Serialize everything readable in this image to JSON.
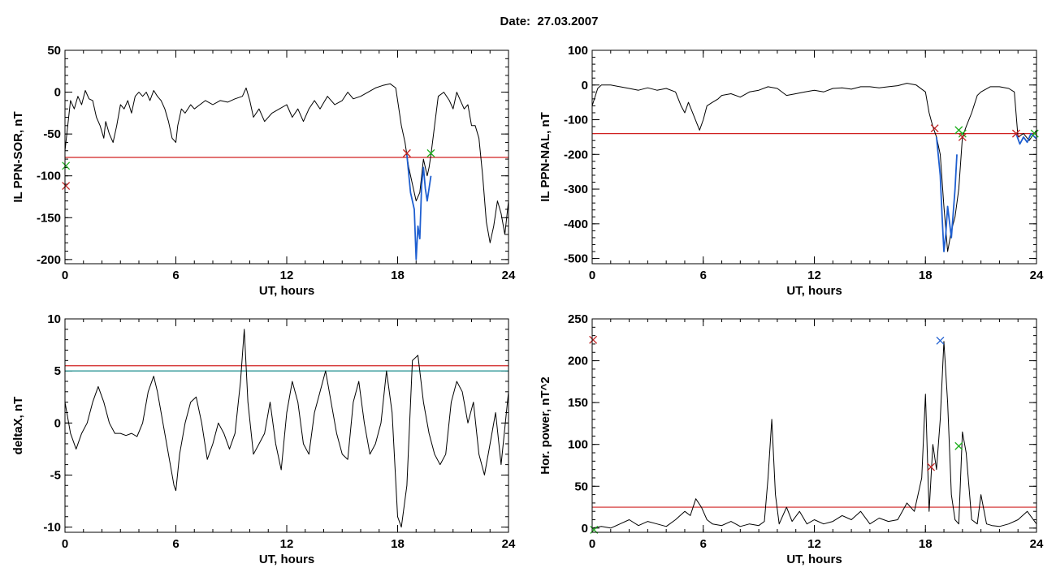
{
  "page": {
    "title": "Date:  27.03.2007"
  },
  "chart_data": [
    {
      "id": "sor",
      "type": "line",
      "xlabel": "UT, hours",
      "ylabel": "IL PPN-SOR, nT",
      "xlim": [
        0,
        24
      ],
      "ylim": [
        -205,
        50
      ],
      "xticks": [
        0,
        6,
        12,
        18,
        24
      ],
      "yticks": [
        50,
        0,
        -50,
        -100,
        -150,
        -200
      ],
      "series": [
        {
          "color": "#000000",
          "x": [
            0,
            0.15,
            0.3,
            0.5,
            0.7,
            0.9,
            1.1,
            1.3,
            1.5,
            1.7,
            1.9,
            2.1,
            2.2,
            2.4,
            2.6,
            2.8,
            3.0,
            3.2,
            3.4,
            3.6,
            3.8,
            4.0,
            4.2,
            4.4,
            4.6,
            4.8,
            5.0,
            5.2,
            5.4,
            5.6,
            5.8,
            6.0,
            6.1,
            6.2,
            6.3,
            6.5,
            6.8,
            7.0,
            7.3,
            7.6,
            8.0,
            8.4,
            8.8,
            9.2,
            9.6,
            9.8,
            10.0,
            10.2,
            10.5,
            10.8,
            11.2,
            11.6,
            12.0,
            12.3,
            12.6,
            12.9,
            13.2,
            13.5,
            13.8,
            14.2,
            14.6,
            15.0,
            15.3,
            15.6,
            16.0,
            16.4,
            16.8,
            17.2,
            17.6,
            17.9,
            18.2,
            18.4,
            18.5,
            18.6,
            18.8,
            19.0,
            19.2,
            19.4,
            19.6,
            19.7,
            19.8,
            20.0,
            20.2,
            20.5,
            20.8,
            21.0,
            21.2,
            21.4,
            21.6,
            21.8,
            22.0,
            22.2,
            22.4,
            22.6,
            22.8,
            23.0,
            23.2,
            23.4,
            23.6,
            23.8,
            24.0
          ],
          "y": [
            -70,
            -40,
            -10,
            -20,
            -5,
            -15,
            2,
            -8,
            -10,
            -30,
            -40,
            -55,
            -35,
            -50,
            -60,
            -40,
            -15,
            -20,
            -10,
            -25,
            -5,
            0,
            -5,
            0,
            -10,
            2,
            -5,
            -10,
            -20,
            -35,
            -55,
            -60,
            -40,
            -30,
            -20,
            -25,
            -15,
            -20,
            -15,
            -10,
            -15,
            -10,
            -12,
            -8,
            -5,
            5,
            -10,
            -30,
            -20,
            -35,
            -25,
            -20,
            -15,
            -30,
            -20,
            -35,
            -20,
            -10,
            -20,
            -5,
            -15,
            -10,
            0,
            -8,
            -5,
            0,
            5,
            8,
            10,
            5,
            -40,
            -60,
            -75,
            -90,
            -110,
            -130,
            -120,
            -80,
            -100,
            -90,
            -75,
            -40,
            -5,
            0,
            -10,
            -20,
            0,
            -10,
            -20,
            -15,
            -40,
            -40,
            -55,
            -100,
            -155,
            -180,
            -160,
            -130,
            -145,
            -170,
            -130
          ]
        },
        {
          "color": "#1f5fd0",
          "x": [
            18.5,
            18.7,
            18.9,
            19.0,
            19.1,
            19.2,
            19.3,
            19.4,
            19.5,
            19.6,
            19.8
          ],
          "y": [
            -75,
            -120,
            -140,
            -200,
            -160,
            -175,
            -110,
            -90,
            -115,
            -130,
            -100
          ]
        }
      ],
      "hlines": [
        {
          "value": -78,
          "color": "#d02020"
        }
      ],
      "markers": [
        {
          "x": 18.5,
          "y": -73,
          "color": "#c02020"
        },
        {
          "x": 19.8,
          "y": -73,
          "color": "#20b020"
        },
        {
          "x": 0.05,
          "y": -112,
          "color": "#c02020"
        },
        {
          "x": 0.05,
          "y": -88,
          "color": "#20b020"
        }
      ]
    },
    {
      "id": "nal",
      "type": "line",
      "xlabel": "UT, hours",
      "ylabel": "IL PPN-NAL, nT",
      "xlim": [
        0,
        24
      ],
      "ylim": [
        -515,
        100
      ],
      "xticks": [
        0,
        6,
        12,
        18,
        24
      ],
      "yticks": [
        100,
        0,
        -100,
        -200,
        -300,
        -400,
        -500
      ],
      "series": [
        {
          "color": "#000000",
          "x": [
            0,
            0.3,
            0.5,
            1,
            1.5,
            2,
            2.5,
            3,
            3.5,
            4,
            4.5,
            4.8,
            5.0,
            5.2,
            5.5,
            5.8,
            6.0,
            6.2,
            6.5,
            6.8,
            7.0,
            7.5,
            8.0,
            8.5,
            9.0,
            9.5,
            10.0,
            10.5,
            11,
            11.5,
            12,
            12.5,
            13,
            13.5,
            14,
            14.5,
            15,
            15.5,
            16,
            16.5,
            17,
            17.5,
            18.0,
            18.2,
            18.4,
            18.6,
            18.8,
            19.0,
            19.2,
            19.4,
            19.6,
            19.8,
            20.0,
            20.2,
            20.5,
            20.8,
            21.0,
            21.5,
            22.0,
            22.5,
            22.8,
            23.0,
            23.3,
            23.6,
            24.0
          ],
          "y": [
            -60,
            -10,
            0,
            0,
            -5,
            -10,
            -15,
            -8,
            -15,
            -10,
            -20,
            -60,
            -80,
            -50,
            -90,
            -130,
            -100,
            -60,
            -50,
            -40,
            -30,
            -25,
            -35,
            -20,
            -15,
            -5,
            -10,
            -30,
            -25,
            -20,
            -15,
            -20,
            -10,
            -8,
            -12,
            -5,
            -5,
            -8,
            -5,
            -2,
            5,
            0,
            -20,
            -80,
            -120,
            -150,
            -200,
            -350,
            -480,
            -420,
            -380,
            -300,
            -150,
            -120,
            -80,
            -30,
            -20,
            -5,
            -5,
            -10,
            -20,
            -150,
            -140,
            -160,
            -130
          ]
        },
        {
          "color": "#1f5fd0",
          "x": [
            18.6,
            18.8,
            18.9,
            19.0,
            19.1,
            19.2,
            19.4,
            19.6,
            19.7
          ],
          "y": [
            -150,
            -260,
            -380,
            -480,
            -430,
            -350,
            -440,
            -300,
            -200
          ]
        },
        {
          "color": "#1f5fd0",
          "x": [
            22.9,
            23.1,
            23.3,
            23.5,
            23.7,
            24.0
          ],
          "y": [
            -140,
            -170,
            -150,
            -165,
            -140,
            -155
          ]
        }
      ],
      "hlines": [
        {
          "value": -140,
          "color": "#d02020"
        }
      ],
      "markers": [
        {
          "x": 18.5,
          "y": -125,
          "color": "#c02020"
        },
        {
          "x": 19.8,
          "y": -130,
          "color": "#20b020"
        },
        {
          "x": 20.0,
          "y": -140,
          "color": "#20b020"
        },
        {
          "x": 20.0,
          "y": -150,
          "color": "#c02020"
        },
        {
          "x": 22.9,
          "y": -140,
          "color": "#c02020"
        },
        {
          "x": 23.9,
          "y": -140,
          "color": "#20b020"
        }
      ]
    },
    {
      "id": "deltax",
      "type": "line",
      "xlabel": "UT, hours",
      "ylabel": "deltaX, nT",
      "xlim": [
        0,
        24
      ],
      "ylim": [
        -10.5,
        10
      ],
      "xticks": [
        0,
        6,
        12,
        18,
        24
      ],
      "yticks": [
        10,
        5,
        0,
        -5,
        -10
      ],
      "series": [
        {
          "color": "#000000",
          "x": [
            0,
            0.3,
            0.6,
            0.9,
            1.2,
            1.5,
            1.8,
            2.1,
            2.4,
            2.7,
            3.0,
            3.3,
            3.6,
            3.9,
            4.2,
            4.5,
            4.8,
            5.0,
            5.3,
            5.6,
            5.9,
            6.0,
            6.2,
            6.5,
            6.8,
            7.1,
            7.4,
            7.7,
            8.0,
            8.3,
            8.6,
            8.9,
            9.2,
            9.5,
            9.7,
            9.9,
            10.2,
            10.5,
            10.8,
            11.1,
            11.4,
            11.7,
            12.0,
            12.3,
            12.6,
            12.9,
            13.2,
            13.5,
            13.8,
            14.1,
            14.4,
            14.7,
            15.0,
            15.3,
            15.6,
            15.9,
            16.2,
            16.5,
            16.8,
            17.1,
            17.4,
            17.7,
            18.0,
            18.2,
            18.5,
            18.8,
            19.1,
            19.4,
            19.7,
            20.0,
            20.3,
            20.6,
            20.9,
            21.2,
            21.5,
            21.8,
            22.1,
            22.4,
            22.7,
            23.0,
            23.3,
            23.6,
            24.0
          ],
          "y": [
            2,
            -1,
            -2.5,
            -1,
            0,
            2,
            3.5,
            2,
            0,
            -1,
            -1,
            -1.2,
            -1,
            -1.3,
            0,
            3,
            4.5,
            3,
            0,
            -3,
            -6,
            -6.5,
            -3,
            0,
            2,
            2.5,
            0,
            -3.5,
            -2,
            0,
            -1,
            -2.5,
            -1,
            4,
            9,
            2,
            -3,
            -2,
            -1,
            2,
            -2,
            -4.5,
            1,
            4,
            2,
            -2,
            -3,
            1,
            3,
            5,
            2,
            -1,
            -3,
            -3.5,
            2,
            4,
            0,
            -3,
            -2,
            0,
            5,
            1,
            -9,
            -10,
            -6,
            6,
            6.5,
            2,
            -1,
            -3,
            -4,
            -3,
            2,
            4,
            3,
            0,
            2,
            -3,
            -5,
            -2,
            1,
            -4,
            3
          ]
        }
      ],
      "hlines": [
        {
          "value": 5.5,
          "color": "#d02020"
        },
        {
          "value": 5.0,
          "color": "#1f8f8f"
        }
      ],
      "markers": []
    },
    {
      "id": "power",
      "type": "line",
      "xlabel": "UT, hours",
      "ylabel": "Hor. power, nT^2",
      "xlim": [
        0,
        24
      ],
      "ylim": [
        -5,
        250
      ],
      "xticks": [
        0,
        6,
        12,
        18,
        24
      ],
      "yticks": [
        250,
        200,
        150,
        100,
        50,
        0
      ],
      "series": [
        {
          "color": "#000000",
          "x": [
            0,
            0.5,
            1,
            1.5,
            2,
            2.5,
            3,
            3.5,
            4,
            4.5,
            5.0,
            5.3,
            5.6,
            5.9,
            6.2,
            6.5,
            7,
            7.5,
            8,
            8.5,
            9,
            9.3,
            9.5,
            9.7,
            9.9,
            10.1,
            10.5,
            10.8,
            11.2,
            11.6,
            12.0,
            12.5,
            13,
            13.5,
            14,
            14.5,
            15,
            15.5,
            16,
            16.5,
            17.0,
            17.4,
            17.8,
            18.0,
            18.2,
            18.4,
            18.6,
            18.8,
            19.0,
            19.2,
            19.4,
            19.6,
            19.8,
            20.0,
            20.2,
            20.5,
            20.8,
            21.0,
            21.3,
            21.6,
            22.0,
            22.5,
            23,
            23.5,
            24.0
          ],
          "y": [
            0,
            2,
            0,
            5,
            10,
            3,
            8,
            5,
            2,
            10,
            20,
            15,
            35,
            25,
            10,
            5,
            3,
            8,
            2,
            5,
            3,
            8,
            60,
            130,
            40,
            5,
            25,
            8,
            20,
            5,
            10,
            5,
            8,
            15,
            10,
            20,
            5,
            12,
            8,
            10,
            30,
            20,
            60,
            160,
            20,
            100,
            70,
            130,
            223,
            150,
            40,
            10,
            5,
            115,
            90,
            10,
            5,
            40,
            5,
            3,
            2,
            5,
            10,
            20,
            5
          ]
        }
      ],
      "hlines": [
        {
          "value": 25,
          "color": "#d02020"
        }
      ],
      "markers": [
        {
          "x": 0.05,
          "y": 225,
          "color": "#c02020"
        },
        {
          "x": 18.8,
          "y": 224,
          "color": "#1f5fd0"
        },
        {
          "x": 18.3,
          "y": 73,
          "color": "#c02020"
        },
        {
          "x": 19.8,
          "y": 98,
          "color": "#20b020"
        },
        {
          "x": 0.1,
          "y": -2,
          "color": "#20b020"
        }
      ]
    }
  ]
}
